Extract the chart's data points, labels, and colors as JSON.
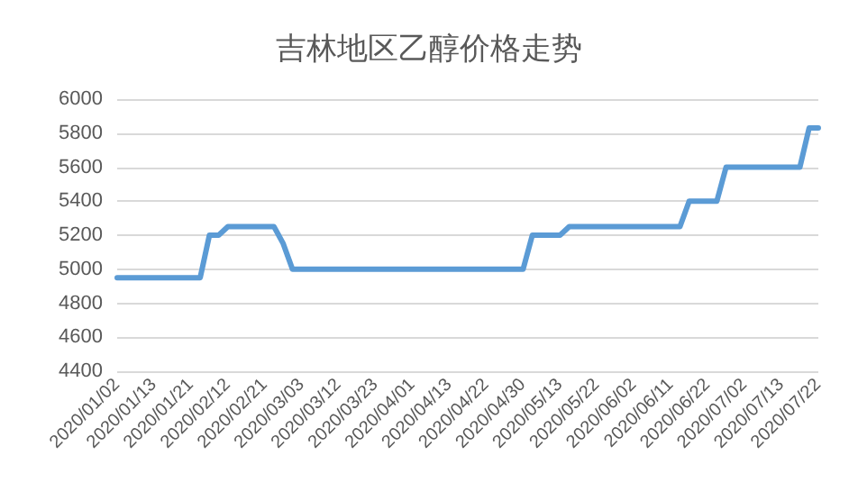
{
  "chart_data": {
    "type": "line",
    "title": "吉林地区乙醇价格走势",
    "categories": [
      "2020/01/02",
      null,
      null,
      null,
      "2020/01/13",
      null,
      null,
      null,
      "2020/01/21",
      null,
      null,
      null,
      "2020/02/12",
      null,
      null,
      null,
      "2020/02/21",
      null,
      null,
      null,
      "2020/03/03",
      null,
      null,
      null,
      "2020/03/12",
      null,
      null,
      null,
      "2020/03/23",
      null,
      null,
      null,
      "2020/04/01",
      null,
      null,
      null,
      "2020/04/13",
      null,
      null,
      null,
      "2020/04/22",
      null,
      null,
      null,
      "2020/04/30",
      null,
      null,
      null,
      "2020/05/13",
      null,
      null,
      null,
      "2020/05/22",
      null,
      null,
      null,
      "2020/06/02",
      null,
      null,
      null,
      "2020/06/11",
      null,
      null,
      null,
      "2020/06/22",
      null,
      null,
      null,
      "2020/07/02",
      null,
      null,
      null,
      "2020/07/13",
      null,
      null,
      null,
      "2020/07/22"
    ],
    "series": [
      {
        "color": "#5b9bd5",
        "values": [
          4950,
          4950,
          4950,
          4950,
          4950,
          4950,
          4950,
          4950,
          4950,
          4950,
          5200,
          5200,
          5250,
          5250,
          5250,
          5250,
          5250,
          5250,
          5150,
          5000,
          5000,
          5000,
          5000,
          5000,
          5000,
          5000,
          5000,
          5000,
          5000,
          5000,
          5000,
          5000,
          5000,
          5000,
          5000,
          5000,
          5000,
          5000,
          5000,
          5000,
          5000,
          5000,
          5000,
          5000,
          5000,
          5200,
          5200,
          5200,
          5200,
          5250,
          5250,
          5250,
          5250,
          5250,
          5250,
          5250,
          5250,
          5250,
          5250,
          5250,
          5250,
          5250,
          5400,
          5400,
          5400,
          5400,
          5600,
          5600,
          5600,
          5600,
          5600,
          5600,
          5600,
          5600,
          5600,
          5830,
          5830
        ]
      }
    ],
    "ylim": [
      4400,
      6000
    ],
    "yticks": [
      4400,
      4600,
      4800,
      5000,
      5200,
      5400,
      5600,
      5800,
      6000
    ],
    "grid": "y",
    "marker": "none",
    "line_style": "solid"
  }
}
